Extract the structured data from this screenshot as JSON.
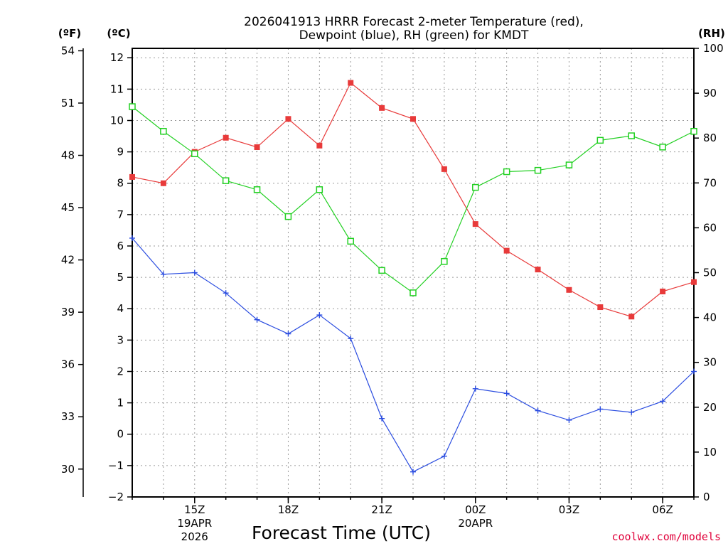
{
  "chart_data": {
    "type": "line",
    "title_line1": "2026041913 HRRR Forecast 2-meter Temperature (red),",
    "title_line2": "Dewpoint (blue), RH (green) for KMDT",
    "xlabel": "Forecast Time (UTC)",
    "credit": "coolwx.com/models",
    "unit_f": "(ºF)",
    "unit_c": "(ºC)",
    "unit_rh": "(RH)",
    "x_ticks": [
      {
        "hour": 2,
        "label": "15Z",
        "sub1": "19APR",
        "sub2": "2026"
      },
      {
        "hour": 5,
        "label": "18Z",
        "sub1": "",
        "sub2": ""
      },
      {
        "hour": 8,
        "label": "21Z",
        "sub1": "",
        "sub2": ""
      },
      {
        "hour": 11,
        "label": "00Z",
        "sub1": "20APR",
        "sub2": ""
      },
      {
        "hour": 14,
        "label": "03Z",
        "sub1": "",
        "sub2": ""
      },
      {
        "hour": 17,
        "label": "06Z",
        "sub1": "",
        "sub2": ""
      }
    ],
    "xlim": [
      0,
      18
    ],
    "c_axis": {
      "min": -2,
      "max": 12.3,
      "ticks": [
        -2,
        -1,
        0,
        1,
        2,
        3,
        4,
        5,
        6,
        7,
        8,
        9,
        10,
        11,
        12
      ]
    },
    "f_axis": {
      "ticks": [
        30,
        33,
        36,
        39,
        42,
        45,
        48,
        51,
        54
      ]
    },
    "rh_axis": {
      "min": 0,
      "max": 100,
      "ticks": [
        0,
        10,
        20,
        30,
        40,
        50,
        60,
        70,
        80,
        90,
        100
      ]
    },
    "series": [
      {
        "name": "Temperature (C)",
        "color": "#e83a3a",
        "marker": "filled-square",
        "values": [
          8.2,
          8.0,
          9.0,
          9.45,
          9.15,
          10.05,
          9.2,
          11.2,
          10.4,
          10.05,
          8.45,
          6.7,
          5.85,
          5.25,
          4.6,
          4.05,
          3.75,
          4.55,
          4.85
        ]
      },
      {
        "name": "Dewpoint (C)",
        "color": "#2b4de0",
        "marker": "plus",
        "values": [
          6.25,
          5.1,
          5.15,
          4.5,
          3.65,
          3.2,
          3.8,
          3.05,
          0.5,
          -1.2,
          -0.7,
          1.45,
          1.3,
          0.75,
          0.45,
          0.8,
          0.7,
          1.05,
          2.0
        ]
      },
      {
        "name": "RH (%)",
        "color": "#22d022",
        "marker": "open-square",
        "values": [
          87,
          81.5,
          76.5,
          70.5,
          68.5,
          62.5,
          68.5,
          57,
          50.5,
          45.5,
          52.5,
          69,
          72.5,
          72.8,
          74,
          79.5,
          80.5,
          78,
          81.5
        ]
      }
    ]
  }
}
